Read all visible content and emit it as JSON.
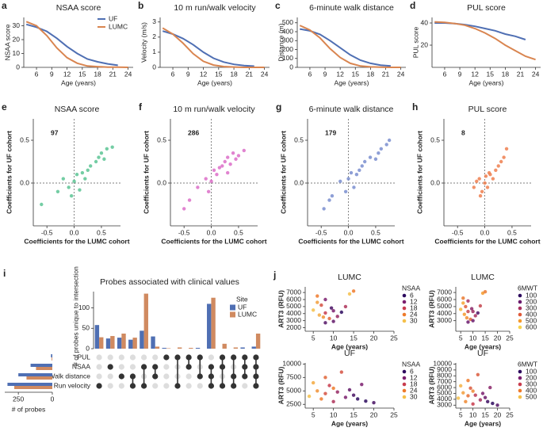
{
  "chart_data": [
    {
      "type": "line",
      "panel": "a",
      "title": "NSAA score",
      "x_label": "Age (years)",
      "y_label": "NSAA score",
      "xlim": [
        3.5,
        25
      ],
      "xticks": [
        6,
        9,
        12,
        15,
        18,
        21,
        24
      ],
      "ylim": [
        0,
        36
      ],
      "yticks": [
        0,
        10,
        20,
        30
      ],
      "legend": "upper right",
      "series": [
        {
          "name": "UF",
          "color": "#4f6fb3",
          "x": [
            4,
            6,
            8,
            10,
            12,
            14,
            16,
            18,
            20,
            22
          ],
          "values": [
            31,
            29,
            26,
            21,
            15,
            10,
            6,
            4,
            2.5,
            1.5
          ]
        },
        {
          "name": "LUMC",
          "color": "#d98550",
          "x": [
            4,
            6,
            8,
            10,
            12,
            14,
            16,
            18,
            20,
            22,
            24
          ],
          "values": [
            33,
            30,
            23,
            14,
            7,
            3,
            1,
            0.5,
            0.2,
            0.1,
            0
          ]
        }
      ]
    },
    {
      "type": "line",
      "panel": "b",
      "title": "10 m run/walk velocity",
      "x_label": "Age (years)",
      "y_label": "Velocity (m/s)",
      "xlim": [
        3.5,
        25
      ],
      "xticks": [
        6,
        9,
        12,
        15,
        18,
        21,
        24
      ],
      "ylim": [
        0,
        3.3
      ],
      "yticks": [
        0,
        1,
        2,
        3
      ],
      "series": [
        {
          "name": "UF",
          "color": "#4f6fb3",
          "x": [
            4,
            6,
            8,
            10,
            12,
            14,
            16,
            18,
            20,
            22
          ],
          "values": [
            2.4,
            2.2,
            1.9,
            1.5,
            1.0,
            0.6,
            0.35,
            0.2,
            0.12,
            0.08
          ]
        },
        {
          "name": "LUMC",
          "color": "#d98550",
          "x": [
            4,
            6,
            8,
            10,
            12,
            14,
            16,
            18,
            20,
            22,
            24
          ],
          "values": [
            2.6,
            2.2,
            1.6,
            0.9,
            0.4,
            0.15,
            0.05,
            0.02,
            0,
            0,
            0
          ]
        }
      ]
    },
    {
      "type": "line",
      "panel": "c",
      "title": "6-minute walk distance",
      "x_label": "Age (years)",
      "y_label": "Distance (m)",
      "xlim": [
        3.5,
        25
      ],
      "xticks": [
        6,
        9,
        12,
        15,
        18,
        21,
        24
      ],
      "ylim": [
        0,
        560
      ],
      "yticks": [
        0,
        100,
        200,
        300,
        400,
        500
      ],
      "series": [
        {
          "name": "UF",
          "color": "#4f6fb3",
          "x": [
            4,
            6,
            8,
            10,
            12,
            14,
            16,
            18,
            20,
            22
          ],
          "values": [
            430,
            410,
            370,
            300,
            220,
            140,
            80,
            45,
            25,
            15
          ]
        },
        {
          "name": "LUMC",
          "color": "#d98550",
          "x": [
            4,
            6,
            8,
            10,
            12,
            14,
            16,
            18,
            20,
            22,
            24
          ],
          "values": [
            470,
            420,
            330,
            210,
            110,
            45,
            15,
            5,
            2,
            0,
            0
          ]
        }
      ]
    },
    {
      "type": "line",
      "panel": "d",
      "title": "PUL score",
      "x_label": "Age (years)",
      "y_label": "PUL score",
      "xlim": [
        3.5,
        25
      ],
      "xticks": [
        6,
        9,
        12,
        15,
        18,
        21,
        24
      ],
      "ylim": [
        0,
        45
      ],
      "yticks": [
        20,
        40
      ],
      "series": [
        {
          "name": "UF",
          "color": "#4f6fb3",
          "x": [
            4,
            6,
            8,
            10,
            12,
            14,
            16,
            18,
            20,
            22
          ],
          "values": [
            40,
            40,
            39.5,
            38.5,
            37,
            35,
            33,
            30,
            28,
            25
          ]
        },
        {
          "name": "LUMC",
          "color": "#d98550",
          "x": [
            4,
            6,
            8,
            10,
            12,
            14,
            16,
            18,
            20,
            22,
            24
          ],
          "values": [
            41,
            40.5,
            39.5,
            38,
            35,
            31,
            26,
            20,
            15,
            10,
            7
          ]
        }
      ]
    },
    {
      "type": "scatter",
      "panel": "e",
      "title": "NSAA score",
      "x_label": "Coefficients for the LUMC cohort",
      "y_label": "Coefficients for UF cohort",
      "annotation": 97,
      "color": "#5cc494",
      "xlim": [
        -0.75,
        0.85
      ],
      "ylim": [
        -0.5,
        0.75
      ],
      "xticks": [
        -0.5,
        {
          "value": 0,
          "label": "0.0"
        },
        0.5
      ],
      "yticks": [
        {
          "value": 0,
          "label": "0.0"
        },
        0.5
      ],
      "x": [
        -0.3,
        -0.2,
        -0.1,
        0,
        0.05,
        0.1,
        0.15,
        0.2,
        -0.05,
        0.3,
        0.4,
        0.45,
        0.5,
        0.55,
        0.6,
        0.7,
        -0.6,
        0.25
      ],
      "values": [
        -0.1,
        0.05,
        -0.05,
        0.02,
        0.1,
        -0.08,
        0.12,
        0.05,
        -0.15,
        0.2,
        0.25,
        0.3,
        0.35,
        0.28,
        0.4,
        0.42,
        -0.25,
        0.15
      ]
    },
    {
      "type": "scatter",
      "panel": "f",
      "title": "10 m run/walk velocity",
      "x_label": "Coefficients for the LUMC cohort",
      "y_label": "Coefficients for UF cohort",
      "annotation": 286,
      "color": "#dc6fc8",
      "xlim": [
        -0.75,
        0.85
      ],
      "ylim": [
        -0.5,
        0.75
      ],
      "xticks": [
        -0.5,
        {
          "value": 0,
          "label": "0.0"
        },
        0.5
      ],
      "yticks": [
        {
          "value": 0,
          "label": "0.0"
        },
        0.5
      ],
      "x": [
        -0.4,
        -0.25,
        -0.1,
        0,
        0.05,
        0.1,
        0.2,
        0.25,
        -0.05,
        0.3,
        0.35,
        0.4,
        0.45,
        0.5,
        0.6,
        -0.5,
        0.15,
        0.3
      ],
      "values": [
        -0.2,
        -0.05,
        0.05,
        0.02,
        0.15,
        0.1,
        0.2,
        0.25,
        -0.1,
        0.3,
        0.22,
        0.35,
        0.28,
        0.32,
        0.38,
        -0.3,
        0.18,
        0.12
      ]
    },
    {
      "type": "scatter",
      "panel": "g",
      "title": "6-minute walk distance",
      "x_label": "Coefficients for the LUMC cohort",
      "y_label": "Coefficients for UF cohort",
      "annotation": 179,
      "color": "#7a8ecf",
      "xlim": [
        -0.75,
        0.85
      ],
      "ylim": [
        -0.5,
        0.75
      ],
      "xticks": [
        -0.5,
        {
          "value": 0,
          "label": "0.0"
        },
        0.5
      ],
      "yticks": [
        {
          "value": 0,
          "label": "0.0"
        },
        0.5
      ],
      "x": [
        -0.45,
        -0.3,
        -0.15,
        0,
        0.05,
        0.1,
        0.2,
        0.25,
        -0.05,
        0.3,
        0.4,
        0.5,
        0.55,
        0.6,
        0.7,
        0.75,
        -0.35,
        0.15
      ],
      "values": [
        -0.3,
        -0.15,
        0.02,
        0.05,
        0.12,
        -0.05,
        0.15,
        0.2,
        -0.1,
        0.25,
        0.3,
        0.28,
        0.35,
        0.4,
        0.45,
        0.5,
        -0.2,
        0.1
      ]
    },
    {
      "type": "scatter",
      "panel": "h",
      "title": "PUL score",
      "x_label": "Coefficients for the LUMC cohort",
      "y_label": "Coefficients for UF cohort",
      "annotation": 8,
      "color": "#ef7f4f",
      "xlim": [
        -0.75,
        0.85
      ],
      "ylim": [
        -0.5,
        0.75
      ],
      "xticks": [
        -0.5,
        {
          "value": 0,
          "label": "0.0"
        },
        0.5
      ],
      "yticks": [
        {
          "value": 0,
          "label": "0.0"
        },
        0.5
      ],
      "x": [
        -0.2,
        -0.1,
        -0.05,
        0,
        0.02,
        0.05,
        0.1,
        0.15,
        -0.15,
        0.2,
        0.25,
        0.3,
        0.35,
        0.4,
        -0.08,
        0.08
      ],
      "values": [
        -0.05,
        0.05,
        -0.1,
        0,
        0.08,
        -0.05,
        0.1,
        0.05,
        0.02,
        0.15,
        0.2,
        0.25,
        0.3,
        0.4,
        -0.15,
        0.12
      ]
    },
    {
      "type": "upset",
      "panel": "i",
      "title": "Probes associated with clinical values",
      "y_label": "# of probes unique to intersection",
      "ylim": [
        0,
        140
      ],
      "yticks": [
        0,
        50,
        100
      ],
      "legend_title": "Site",
      "sets": [
        "PUL",
        "NSAA",
        "Walk distance",
        "Run velocity"
      ],
      "set_size_label": "# of probes",
      "set_size_lim": [
        0,
        350
      ],
      "set_size_ticks": [
        250,
        0
      ],
      "intersections": [
        [
          3
        ],
        [
          1
        ],
        [
          2
        ],
        [
          2,
          3
        ],
        [
          1,
          3
        ],
        [
          1,
          2
        ],
        [
          0
        ],
        [
          0,
          3
        ],
        [
          0,
          1
        ],
        [
          0,
          2
        ],
        [
          1,
          2,
          3
        ],
        [
          0,
          1,
          3
        ],
        [
          0,
          2,
          3
        ],
        [
          0,
          1,
          2
        ],
        [
          0,
          1,
          2,
          3
        ]
      ],
      "series": [
        {
          "name": "UF",
          "color": "#4f6fb3",
          "values": [
            58,
            25,
            27,
            22,
            44,
            30,
            2,
            0,
            0,
            2,
            110,
            0,
            0,
            3,
            5
          ],
          "set_sizes": [
            10,
            160,
            250,
            330
          ]
        },
        {
          "name": "LUMC",
          "color": "#d08a60",
          "values": [
            28,
            31,
            37,
            27,
            135,
            5,
            1,
            3,
            2,
            0,
            125,
            12,
            3,
            0,
            37
          ],
          "set_sizes": [
            5,
            120,
            190,
            280
          ]
        }
      ]
    },
    {
      "type": "scatter",
      "panel": "j",
      "title": "LUMC",
      "x_label": "Age (years)",
      "y_label": "ART3 (RFU)",
      "xlim": [
        3,
        25
      ],
      "xticks": [
        5,
        10,
        15,
        20,
        25
      ],
      "ylim": [
        1500,
        7800
      ],
      "yticks": [
        2000,
        3000,
        4000,
        5000,
        6000,
        7000
      ],
      "legend_title": "NSAA",
      "legend_values": [
        6,
        12,
        18,
        24,
        30
      ],
      "legend_colors": [
        "#2d0a5e",
        "#7b1e6e",
        "#c83c4e",
        "#ee7a2b",
        "#f5c04a"
      ],
      "x": [
        5,
        6,
        6.5,
        7,
        7.5,
        8,
        8,
        9,
        9.5,
        10,
        11,
        12,
        13,
        14,
        15,
        6,
        8,
        10
      ],
      "values": [
        4500,
        6500,
        3800,
        5200,
        3500,
        4100,
        6000,
        3300,
        4800,
        2900,
        3600,
        4200,
        5000,
        6800,
        7200,
        5600,
        2700,
        4400
      ],
      "color_values": [
        30,
        24,
        28,
        20,
        26,
        18,
        12,
        22,
        8,
        10,
        14,
        6,
        16,
        30,
        24,
        27,
        9,
        12
      ]
    },
    {
      "type": "scatter",
      "title": "LUMC",
      "x_label": "Age (years)",
      "y_label": "ART3 (RFU)",
      "xlim": [
        3,
        25
      ],
      "xticks": [
        5,
        10,
        15,
        20,
        25
      ],
      "ylim": [
        1500,
        7800
      ],
      "yticks": [
        3000,
        4000,
        5000,
        6000,
        7000
      ],
      "legend_title": "6MWT",
      "legend_values": [
        100,
        200,
        300,
        400,
        500,
        600
      ],
      "legend_colors": [
        "#2d0a5e",
        "#6a1a6d",
        "#a8305f",
        "#df5a3a",
        "#f59a2c",
        "#f7d24d"
      ],
      "x": [
        5,
        6,
        6.5,
        7,
        7.5,
        8,
        8,
        9,
        9.5,
        10,
        11,
        12,
        13,
        14,
        15,
        6,
        8,
        10
      ],
      "values": [
        4600,
        6200,
        3900,
        5000,
        3400,
        4300,
        5800,
        3200,
        4700,
        3000,
        3700,
        4100,
        5100,
        6900,
        7100,
        5500,
        2800,
        4300
      ],
      "color_values": [
        550,
        450,
        500,
        400,
        480,
        350,
        300,
        420,
        250,
        200,
        300,
        150,
        350,
        500,
        450,
        520,
        200,
        280
      ]
    },
    {
      "type": "scatter",
      "title": "UF",
      "x_label": "Age (years)",
      "y_label": "ART3 (RFU)",
      "xlim": [
        3,
        25
      ],
      "xticks": [
        5,
        10,
        15,
        20,
        25
      ],
      "ylim": [
        1800,
        10200
      ],
      "yticks": [
        2500,
        5000,
        7500,
        10000
      ],
      "legend_title": "NSAA",
      "legend_values": [
        6,
        12,
        18,
        24,
        30
      ],
      "legend_colors": [
        "#2d0a5e",
        "#7b1e6e",
        "#c83c4e",
        "#ee7a2b",
        "#f5c04a"
      ],
      "x": [
        4,
        5,
        6,
        7,
        8,
        8,
        9,
        10,
        10,
        11,
        12,
        13,
        14,
        15,
        16,
        17,
        18,
        20
      ],
      "values": [
        4000,
        6500,
        5000,
        3500,
        7500,
        4500,
        6000,
        3000,
        5500,
        4800,
        8500,
        3800,
        5200,
        4200,
        3500,
        6200,
        3100,
        2800
      ],
      "color_values": [
        30,
        28,
        26,
        24,
        22,
        20,
        18,
        16,
        24,
        14,
        20,
        12,
        10,
        8,
        6,
        12,
        6,
        8
      ]
    },
    {
      "type": "scatter",
      "title": "UF",
      "x_label": "Age (years)",
      "y_label": "ART3 (RFU)",
      "xlim": [
        3,
        25
      ],
      "xticks": [
        5,
        10,
        15,
        20,
        25
      ],
      "ylim": [
        2500,
        10200
      ],
      "yticks": [
        3000,
        4000,
        5000,
        6000,
        7000,
        8000,
        9000,
        10000
      ],
      "legend_title": "6MWT",
      "legend_values": [
        100,
        200,
        300,
        400,
        500
      ],
      "legend_colors": [
        "#2d0a5e",
        "#7b1e6e",
        "#c83c4e",
        "#ee7a2b",
        "#f5c04a"
      ],
      "x": [
        4,
        5,
        6,
        7,
        8,
        8,
        9,
        10,
        10,
        11,
        12,
        13,
        14,
        15,
        16,
        17,
        18,
        20
      ],
      "values": [
        4200,
        6300,
        5100,
        3600,
        7200,
        4600,
        5900,
        3200,
        5400,
        4700,
        8200,
        3900,
        5000,
        4300,
        3600,
        6000,
        3300,
        3000
      ],
      "color_values": [
        500,
        480,
        450,
        420,
        400,
        380,
        350,
        300,
        420,
        280,
        350,
        250,
        200,
        180,
        120,
        220,
        100,
        150
      ]
    }
  ]
}
